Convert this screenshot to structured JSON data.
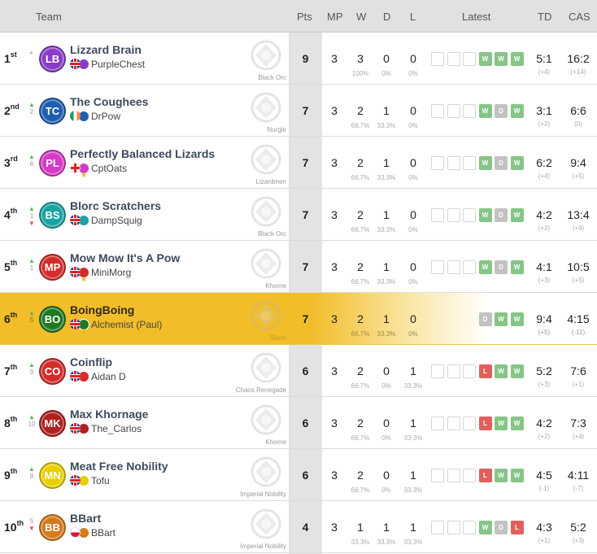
{
  "header": {
    "team": "Team",
    "pts": "Pts",
    "mp": "MP",
    "w": "W",
    "d": "D",
    "l": "L",
    "latest": "Latest",
    "td": "TD",
    "cas": "CAS"
  },
  "colors": {
    "highlight": "#f2bd28",
    "win": "#86c586",
    "draw": "#c2c2c2",
    "loss": "#e0605c"
  },
  "rows": [
    {
      "rank": "1",
      "suffix": "st",
      "move": "▸",
      "moveNum": "",
      "initials": "LB",
      "badgeColor": "#8a3cc8",
      "team": "Lizzard Brain",
      "coach": "PurpleChest",
      "flag": "gb",
      "star": false,
      "race": "Black Orc",
      "pts": "9",
      "mp": "3",
      "w": "3",
      "d": "0",
      "l": "0",
      "wp": "100%",
      "dp": "0%",
      "lp": "0%",
      "latest": [
        "",
        "",
        "",
        "W",
        "W",
        "W"
      ],
      "td": "5:1",
      "tdDiff": "(+4)",
      "cas": "16:2",
      "casDiff": "(+14)"
    },
    {
      "rank": "2",
      "suffix": "nd",
      "move": "▲",
      "moveNum": "2",
      "initials": "TC",
      "badgeColor": "#1f5fb0",
      "team": "The Coughees",
      "coach": "DrPow",
      "flag": "ie",
      "star": false,
      "race": "Nurgle",
      "pts": "7",
      "mp": "3",
      "w": "2",
      "d": "1",
      "l": "0",
      "wp": "66.7%",
      "dp": "33.3%",
      "lp": "0%",
      "latest": [
        "",
        "",
        "",
        "W",
        "D",
        "W"
      ],
      "td": "3:1",
      "tdDiff": "(+2)",
      "cas": "6:6",
      "casDiff": "(0)"
    },
    {
      "rank": "3",
      "suffix": "rd",
      "move": "▲",
      "moveNum": "6",
      "initials": "PL",
      "badgeColor": "#d63ac8",
      "team": "Perfectly Balanced Lizards",
      "coach": "CptOats",
      "flag": "eng",
      "star": true,
      "race": "Lizardmen",
      "pts": "7",
      "mp": "3",
      "w": "2",
      "d": "1",
      "l": "0",
      "wp": "66.7%",
      "dp": "33.3%",
      "lp": "0%",
      "latest": [
        "",
        "",
        "",
        "W",
        "D",
        "W"
      ],
      "td": "6:2",
      "tdDiff": "(+4)",
      "cas": "9:4",
      "casDiff": "(+5)"
    },
    {
      "rank": "4",
      "suffix": "th",
      "move": "▲▼",
      "moveNum": "1",
      "initials": "BS",
      "badgeColor": "#1aa3a3",
      "team": "Blorc Scratchers",
      "coach": "DampSquig",
      "flag": "gb",
      "star": false,
      "race": "Black Orc",
      "pts": "7",
      "mp": "3",
      "w": "2",
      "d": "1",
      "l": "0",
      "wp": "66.7%",
      "dp": "33.3%",
      "lp": "0%",
      "latest": [
        "",
        "",
        "",
        "W",
        "D",
        "W"
      ],
      "td": "4:2",
      "tdDiff": "(+2)",
      "cas": "13:4",
      "casDiff": "(+9)"
    },
    {
      "rank": "5",
      "suffix": "th",
      "move": "▲",
      "moveNum": "1",
      "initials": "MP",
      "badgeColor": "#d42b2b",
      "team": "Mow Mow It's A Pow",
      "coach": "MiniMorg",
      "flag": "gb",
      "star": true,
      "race": "Khorne",
      "pts": "7",
      "mp": "3",
      "w": "2",
      "d": "1",
      "l": "0",
      "wp": "66.7%",
      "dp": "33.3%",
      "lp": "0%",
      "latest": [
        "",
        "",
        "",
        "W",
        "D",
        "W"
      ],
      "td": "4:1",
      "tdDiff": "(+3)",
      "cas": "10:5",
      "casDiff": "(+5)"
    },
    {
      "rank": "6",
      "suffix": "th",
      "move": "▲",
      "moveNum": "5",
      "initials": "BO",
      "badgeColor": "#1e7a24",
      "team": "BoingBoing",
      "coach": "Alchemist (Paul)",
      "flag": "gb",
      "star": true,
      "race": "Slann",
      "pts": "7",
      "mp": "3",
      "w": "2",
      "d": "1",
      "l": "0",
      "wp": "66.7%",
      "dp": "33.3%",
      "lp": "0%",
      "latest": [
        "",
        "",
        "",
        "D",
        "W",
        "W"
      ],
      "td": "9:4",
      "tdDiff": "(+5)",
      "cas": "4:15",
      "casDiff": "(-11)",
      "highlight": true
    },
    {
      "rank": "7",
      "suffix": "th",
      "move": "▲",
      "moveNum": "9",
      "initials": "CO",
      "badgeColor": "#d42b2b",
      "team": "Coinflip",
      "coach": "Aidan D",
      "flag": "gb",
      "star": false,
      "race": "Chaos Renegade",
      "pts": "6",
      "mp": "3",
      "w": "2",
      "d": "0",
      "l": "1",
      "wp": "66.7%",
      "dp": "0%",
      "lp": "33.3%",
      "latest": [
        "",
        "",
        "",
        "L",
        "W",
        "W"
      ],
      "td": "5:2",
      "tdDiff": "(+3)",
      "cas": "7:6",
      "casDiff": "(+1)"
    },
    {
      "rank": "8",
      "suffix": "th",
      "move": "▲",
      "moveNum": "10",
      "initials": "MK",
      "badgeColor": "#b02020",
      "team": "Max Khornage",
      "coach": "The_Carlos",
      "flag": "gb",
      "star": false,
      "race": "Khorne",
      "pts": "6",
      "mp": "3",
      "w": "2",
      "d": "0",
      "l": "1",
      "wp": "66.7%",
      "dp": "0%",
      "lp": "33.3%",
      "latest": [
        "",
        "",
        "",
        "L",
        "W",
        "W"
      ],
      "td": "4:2",
      "tdDiff": "(+2)",
      "cas": "7:3",
      "casDiff": "(+4)"
    },
    {
      "rank": "9",
      "suffix": "th",
      "move": "▲",
      "moveNum": "8",
      "initials": "MN",
      "badgeColor": "#e8d000",
      "team": "Meat Free Nobility",
      "coach": "Tofu",
      "flag": "gb",
      "star": false,
      "race": "Imperial Nobility",
      "pts": "6",
      "mp": "3",
      "w": "2",
      "d": "0",
      "l": "1",
      "wp": "66.7%",
      "dp": "0%",
      "lp": "33.3%",
      "latest": [
        "",
        "",
        "",
        "L",
        "W",
        "W"
      ],
      "td": "4:5",
      "tdDiff": "(-1)",
      "cas": "4:11",
      "casDiff": "(-7)"
    },
    {
      "rank": "10",
      "suffix": "th",
      "move": "▼",
      "moveNum": "5",
      "initials": "BB",
      "badgeColor": "#d67a1e",
      "team": "BBart",
      "coach": "BBart",
      "flag": "pl",
      "star": false,
      "race": "Imperial Nobility",
      "pts": "4",
      "mp": "3",
      "w": "1",
      "d": "1",
      "l": "1",
      "wp": "33.3%",
      "dp": "33.3%",
      "lp": "33.3%",
      "latest": [
        "",
        "",
        "",
        "W",
        "D",
        "L"
      ],
      "td": "4:3",
      "tdDiff": "(+1)",
      "cas": "5:2",
      "casDiff": "(+3)"
    }
  ]
}
